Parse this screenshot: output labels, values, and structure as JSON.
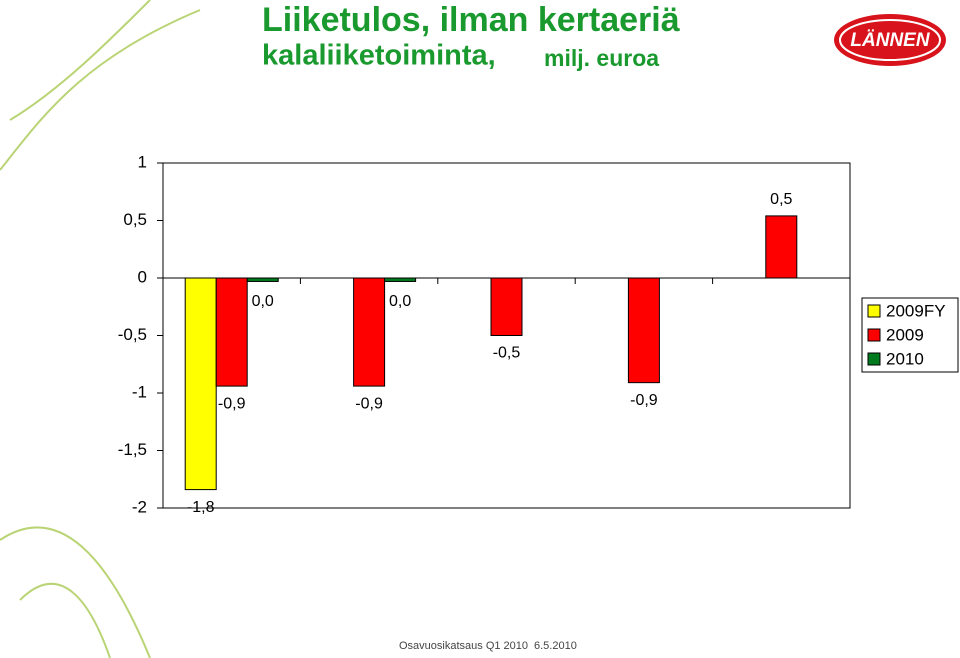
{
  "chart_data": {
    "type": "bar",
    "title": "Liiketulos, ilman kertaeriä",
    "subtitle": "kalaliiketoiminta,",
    "unit_label": "milj. euroa",
    "categories": [
      null,
      null,
      null,
      null,
      null
    ],
    "series": [
      {
        "name": "2009FY",
        "color": "#ffff00",
        "values": [
          -1.84,
          null,
          null,
          null,
          null
        ],
        "value_labels": [
          "-1,8",
          null,
          null,
          null,
          null
        ]
      },
      {
        "name": "2009",
        "color": "#ff0000",
        "values": [
          -0.94,
          -0.94,
          -0.5,
          -0.91,
          0.54
        ],
        "value_labels": [
          "-0,9",
          "-0,9",
          "-0,5",
          "-0,9",
          "0,5"
        ]
      },
      {
        "name": "2010",
        "color": "#007a1e",
        "values": [
          -0.03,
          -0.03,
          null,
          null,
          null
        ],
        "value_labels": [
          "0,0",
          "0,0",
          null,
          null,
          null
        ]
      }
    ],
    "ylim": [
      -2,
      1
    ],
    "yticks": [
      -2,
      {
        "value": -1.5,
        "label": "-1,5"
      },
      -1,
      {
        "value": -0.5,
        "label": "-0,5"
      },
      0,
      {
        "value": 0.5,
        "label": "0,5"
      },
      1
    ],
    "grid": false,
    "legend": "right"
  },
  "logo": "LÄNNEN",
  "footer": [
    "Osavuosikatsaus Q1 2010",
    "6.5.2010"
  ]
}
